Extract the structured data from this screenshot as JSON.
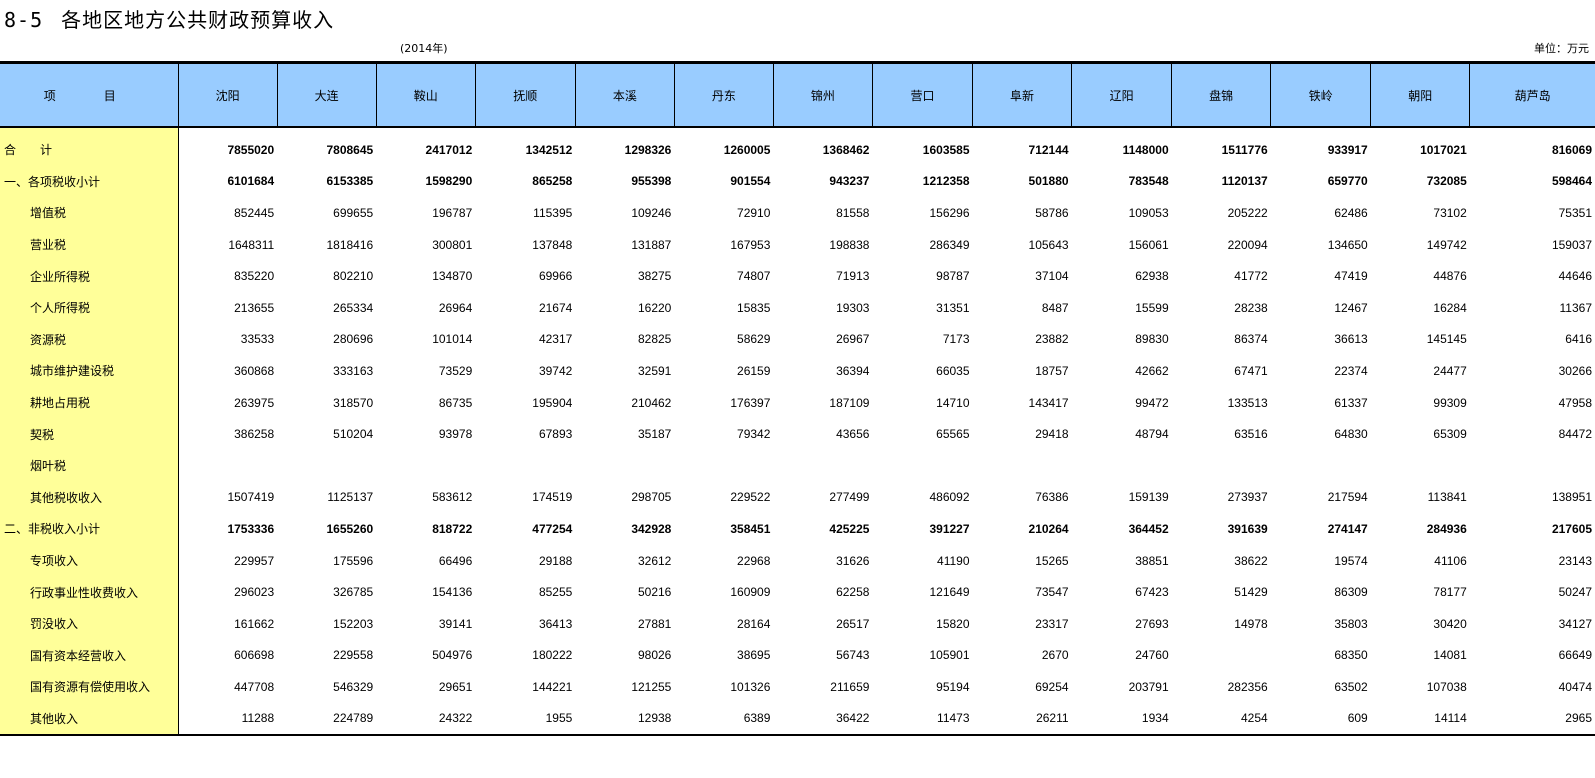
{
  "title": {
    "number": "8-5",
    "text": "各地区地方公共财政预算收入"
  },
  "year": "(2014年)",
  "unit": "单位：万元",
  "columns": [
    "项　目",
    "沈阳",
    "大连",
    "鞍山",
    "抚顺",
    "本溪",
    "丹东",
    "锦州",
    "营口",
    "阜新",
    "辽阳",
    "盘锦",
    "铁岭",
    "朝阳",
    "葫芦岛"
  ],
  "rows": [
    {
      "label": "合　　计",
      "bold": true,
      "indent": false,
      "values": [
        "7855020",
        "7808645",
        "2417012",
        "1342512",
        "1298326",
        "1260005",
        "1368462",
        "1603585",
        "712144",
        "1148000",
        "1511776",
        "933917",
        "1017021",
        "816069"
      ]
    },
    {
      "label": "一、各项税收小计",
      "bold": true,
      "indent": false,
      "values": [
        "6101684",
        "6153385",
        "1598290",
        "865258",
        "955398",
        "901554",
        "943237",
        "1212358",
        "501880",
        "783548",
        "1120137",
        "659770",
        "732085",
        "598464"
      ]
    },
    {
      "label": "增值税",
      "indent": true,
      "values": [
        "852445",
        "699655",
        "196787",
        "115395",
        "109246",
        "72910",
        "81558",
        "156296",
        "58786",
        "109053",
        "205222",
        "62486",
        "73102",
        "75351"
      ]
    },
    {
      "label": "营业税",
      "indent": true,
      "values": [
        "1648311",
        "1818416",
        "300801",
        "137848",
        "131887",
        "167953",
        "198838",
        "286349",
        "105643",
        "156061",
        "220094",
        "134650",
        "149742",
        "159037"
      ]
    },
    {
      "label": "企业所得税",
      "indent": true,
      "values": [
        "835220",
        "802210",
        "134870",
        "69966",
        "38275",
        "74807",
        "71913",
        "98787",
        "37104",
        "62938",
        "41772",
        "47419",
        "44876",
        "44646"
      ]
    },
    {
      "label": "个人所得税",
      "indent": true,
      "values": [
        "213655",
        "265334",
        "26964",
        "21674",
        "16220",
        "15835",
        "19303",
        "31351",
        "8487",
        "15599",
        "28238",
        "12467",
        "16284",
        "11367"
      ]
    },
    {
      "label": "资源税",
      "indent": true,
      "values": [
        "33533",
        "280696",
        "101014",
        "42317",
        "82825",
        "58629",
        "26967",
        "7173",
        "23882",
        "89830",
        "86374",
        "36613",
        "145145",
        "6416"
      ]
    },
    {
      "label": "城市维护建设税",
      "indent": true,
      "values": [
        "360868",
        "333163",
        "73529",
        "39742",
        "32591",
        "26159",
        "36394",
        "66035",
        "18757",
        "42662",
        "67471",
        "22374",
        "24477",
        "30266"
      ]
    },
    {
      "label": "耕地占用税",
      "indent": true,
      "values": [
        "263975",
        "318570",
        "86735",
        "195904",
        "210462",
        "176397",
        "187109",
        "14710",
        "143417",
        "99472",
        "133513",
        "61337",
        "99309",
        "47958"
      ]
    },
    {
      "label": "契税",
      "indent": true,
      "values": [
        "386258",
        "510204",
        "93978",
        "67893",
        "35187",
        "79342",
        "43656",
        "65565",
        "29418",
        "48794",
        "63516",
        "64830",
        "65309",
        "84472"
      ]
    },
    {
      "label": "烟叶税",
      "indent": true,
      "values": [
        "",
        "",
        "",
        "",
        "",
        "",
        "",
        "",
        "",
        "",
        "",
        "",
        "",
        ""
      ]
    },
    {
      "label": "其他税收收入",
      "indent": true,
      "values": [
        "1507419",
        "1125137",
        "583612",
        "174519",
        "298705",
        "229522",
        "277499",
        "486092",
        "76386",
        "159139",
        "273937",
        "217594",
        "113841",
        "138951"
      ]
    },
    {
      "label": "二、非税收入小计",
      "bold": true,
      "indent": false,
      "values": [
        "1753336",
        "1655260",
        "818722",
        "477254",
        "342928",
        "358451",
        "425225",
        "391227",
        "210264",
        "364452",
        "391639",
        "274147",
        "284936",
        "217605"
      ]
    },
    {
      "label": "专项收入",
      "indent": true,
      "values": [
        "229957",
        "175596",
        "66496",
        "29188",
        "32612",
        "22968",
        "31626",
        "41190",
        "15265",
        "38851",
        "38622",
        "19574",
        "41106",
        "23143"
      ]
    },
    {
      "label": "行政事业性收费收入",
      "indent": true,
      "values": [
        "296023",
        "326785",
        "154136",
        "85255",
        "50216",
        "160909",
        "62258",
        "121649",
        "73547",
        "67423",
        "51429",
        "86309",
        "78177",
        "50247"
      ]
    },
    {
      "label": "罚没收入",
      "indent": true,
      "values": [
        "161662",
        "152203",
        "39141",
        "36413",
        "27881",
        "28164",
        "26517",
        "15820",
        "23317",
        "27693",
        "14978",
        "35803",
        "30420",
        "34127"
      ]
    },
    {
      "label": "国有资本经营收入",
      "indent": true,
      "values": [
        "606698",
        "229558",
        "504976",
        "180222",
        "98026",
        "38695",
        "56743",
        "105901",
        "2670",
        "24760",
        "",
        "68350",
        "14081",
        "66649"
      ]
    },
    {
      "label": "国有资源有偿使用收入",
      "indent": true,
      "values": [
        "447708",
        "546329",
        "29651",
        "144221",
        "121255",
        "101326",
        "211659",
        "95194",
        "69254",
        "203791",
        "282356",
        "63502",
        "107038",
        "40474"
      ]
    },
    {
      "label": "其他收入",
      "indent": true,
      "values": [
        "11288",
        "224789",
        "24322",
        "1955",
        "12938",
        "6389",
        "36422",
        "11473",
        "26211",
        "1934",
        "4254",
        "609",
        "14114",
        "2965"
      ]
    }
  ]
}
